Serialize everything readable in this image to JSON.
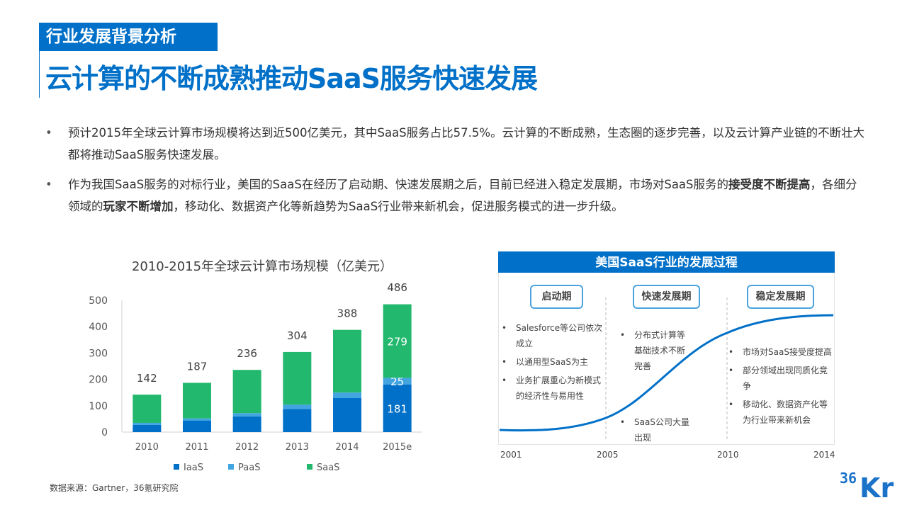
{
  "header": {
    "section": "行业发展背景分析",
    "title": "云计算的不断成熟推动SaaS服务快速发展"
  },
  "bullets": [
    {
      "parts": [
        {
          "t": "预计2015年全球云计算市场规模将达到近500亿美元，其中SaaS服务占比57.5%。云计算的不断成熟，生态圈的逐步完善，以及云计算产业链的不断壮大都将推动SaaS服务快速发展。",
          "b": false
        }
      ]
    },
    {
      "parts": [
        {
          "t": "作为我国SaaS服务的对标行业，美国的SaaS在经历了启动期、快速发展期之后，目前已经进入稳定发展期，市场对SaaS服务的",
          "b": false
        },
        {
          "t": "接受度不断提高",
          "b": true
        },
        {
          "t": "，各细分领域的",
          "b": false
        },
        {
          "t": "玩家不断增加",
          "b": true
        },
        {
          "t": "，移动化、数据资产化等新趋势为SaaS行业带来新机会，促进服务模式的进一步升级。",
          "b": false
        }
      ]
    }
  ],
  "chart_data": {
    "type": "bar",
    "stacked": true,
    "title": "2010-2015年全球云计算市场规模（亿美元）",
    "categories": [
      "2010",
      "2011",
      "2012",
      "2013",
      "2014",
      "2015e"
    ],
    "series": [
      {
        "name": "IaaS",
        "color": "#0070c8",
        "values": [
          27,
          43,
          59,
          88,
          129,
          181
        ]
      },
      {
        "name": "PaaS",
        "color": "#42a5e0",
        "values": [
          8,
          9,
          13,
          16,
          21,
          25
        ]
      },
      {
        "name": "SaaS",
        "color": "#22b86e",
        "values": [
          107,
          135,
          164,
          200,
          238,
          279
        ]
      }
    ],
    "totals": [
      142,
      187,
      236,
      304,
      388,
      486
    ],
    "segment_labels_shown_for": "2015e",
    "ylim": [
      0,
      500
    ],
    "yticks": [
      0,
      100,
      200,
      300,
      400,
      500
    ],
    "grid": false,
    "legend": "bottom"
  },
  "source": "数据来源：Gartner，36氪研究院",
  "process": {
    "title": "美国SaaS行业的发展过程",
    "phases": [
      {
        "label": "启动期",
        "points": [
          "Salesforce等公司依次成立",
          "以通用型SaaS为主",
          "业务扩展重心为新模式的经济性与易用性"
        ]
      },
      {
        "label": "快速发展期",
        "points": [
          "分布式计算等基础技术不断完善",
          "SaaS公司大量出现"
        ]
      },
      {
        "label": "稳定发展期",
        "points": [
          "市场对SaaS接受度提高",
          "部分领域出现同质化竞争",
          "移动化、数据资产化等为行业带来新机会"
        ]
      }
    ],
    "years": [
      "2001",
      "2005",
      "2010",
      "2014"
    ],
    "curve_color": "#0070c8"
  },
  "logo": {
    "text": "36Kr"
  }
}
